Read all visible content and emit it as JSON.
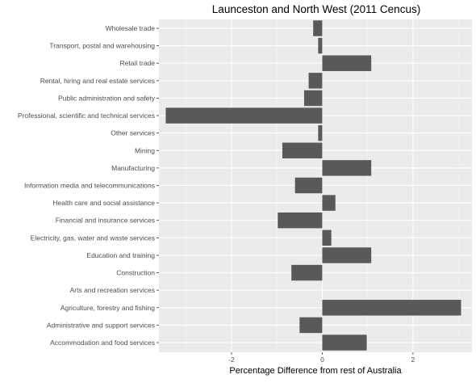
{
  "chart_data": {
    "type": "bar",
    "orientation": "horizontal",
    "title": "Launceston and North West (2011 Cencus)",
    "xlabel": "Percentage Difference from rest of Australia",
    "ylabel": "",
    "xlim": [
      -3.6,
      3.3
    ],
    "xticks": [
      -2,
      0,
      2
    ],
    "xtick_labels": [
      "-2",
      "0",
      "2"
    ],
    "grid": true,
    "panel_color": "#ebebeb",
    "bar_color": "#595959",
    "categories": [
      "Wholesale trade",
      "Transport, postal and warehousing",
      "Retail trade",
      "Rental, hiring and real estate services",
      "Public administration and safety",
      "Professional, scientific and technical services",
      "Other services",
      "Mining",
      "Manufacturing ",
      "Information media and telecommunications",
      "Health care and social assistance",
      "Financial and insurance services",
      "Electricity, gas, water and waste services",
      "Education and training",
      "Construction",
      "Arts and recreation services",
      "Agriculture, forestry and fishing",
      "Administrative and support services",
      "Accommodation and food services"
    ],
    "values": [
      -0.2,
      -0.09,
      1.08,
      -0.3,
      -0.4,
      -3.45,
      -0.09,
      -0.88,
      1.08,
      -0.6,
      0.29,
      -0.98,
      0.2,
      1.08,
      -0.68,
      0.0,
      3.06,
      -0.5,
      0.98
    ]
  }
}
